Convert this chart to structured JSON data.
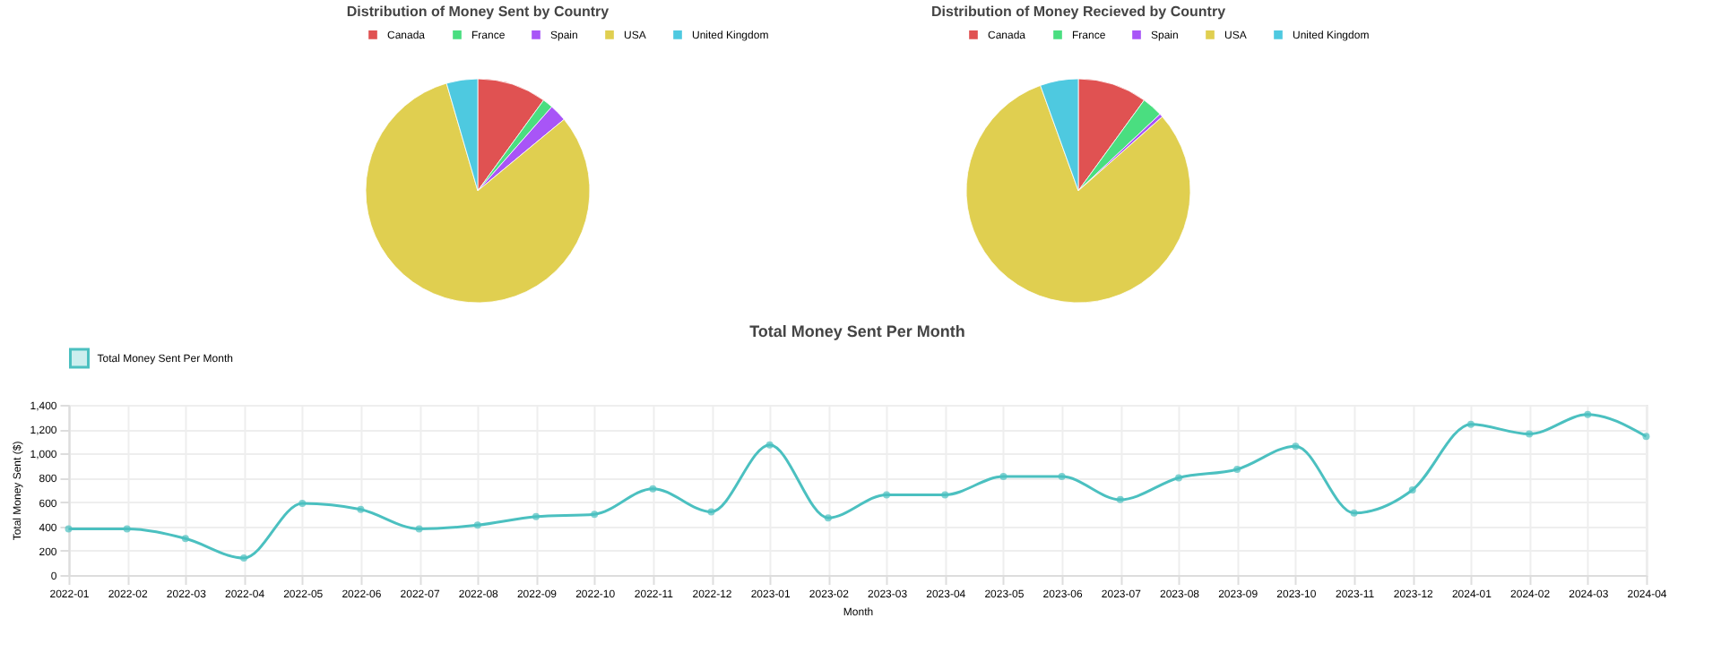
{
  "chart_data": [
    {
      "type": "pie",
      "title": "Distribution of Money Sent by Country",
      "categories": [
        "Canada",
        "France",
        "Spain",
        "USA",
        "United Kingdom"
      ],
      "values": [
        10,
        1.5,
        2.5,
        81.5,
        4.5
      ],
      "colors": [
        "#e05252",
        "#4ade80",
        "#a855f7",
        "#e0cf50",
        "#4ec9e0"
      ],
      "legend": "top"
    },
    {
      "type": "pie",
      "title": "Distribution of Money Recieved by Country",
      "categories": [
        "Canada",
        "France",
        "Spain",
        "USA",
        "United Kingdom"
      ],
      "values": [
        10,
        3,
        0.5,
        81,
        5.5
      ],
      "colors": [
        "#e05252",
        "#4ade80",
        "#a855f7",
        "#e0cf50",
        "#4ec9e0"
      ],
      "legend": "top"
    },
    {
      "type": "line",
      "title": "Total Money Sent Per Month",
      "xlabel": "Month",
      "ylabel": "Total Money Sent ($)",
      "categories": [
        "2022-01",
        "2022-02",
        "2022-03",
        "2022-04",
        "2022-05",
        "2022-06",
        "2022-07",
        "2022-08",
        "2022-09",
        "2022-10",
        "2022-11",
        "2022-12",
        "2023-01",
        "2023-02",
        "2023-03",
        "2023-04",
        "2023-05",
        "2023-06",
        "2023-07",
        "2023-08",
        "2023-09",
        "2023-10",
        "2023-11",
        "2023-12",
        "2024-01",
        "2024-02",
        "2024-03",
        "2024-04"
      ],
      "series": [
        {
          "name": "Total Money Sent Per Month",
          "color": "#4bc0c0",
          "values": [
            380,
            380,
            300,
            140,
            590,
            540,
            380,
            410,
            480,
            500,
            710,
            520,
            1070,
            470,
            660,
            660,
            810,
            810,
            620,
            800,
            870,
            1060,
            510,
            700,
            1240,
            1160,
            1320,
            1140
          ]
        }
      ],
      "ylim": [
        0,
        1400
      ],
      "yticks": [
        0,
        200,
        400,
        600,
        800,
        {
          "value": 1000,
          "label": "1,000"
        },
        {
          "value": 1200,
          "label": "1,200"
        },
        {
          "value": 1400,
          "label": "1,400"
        }
      ],
      "grid": true,
      "legend": "top",
      "marker": "circle",
      "line_style": "solid"
    }
  ]
}
